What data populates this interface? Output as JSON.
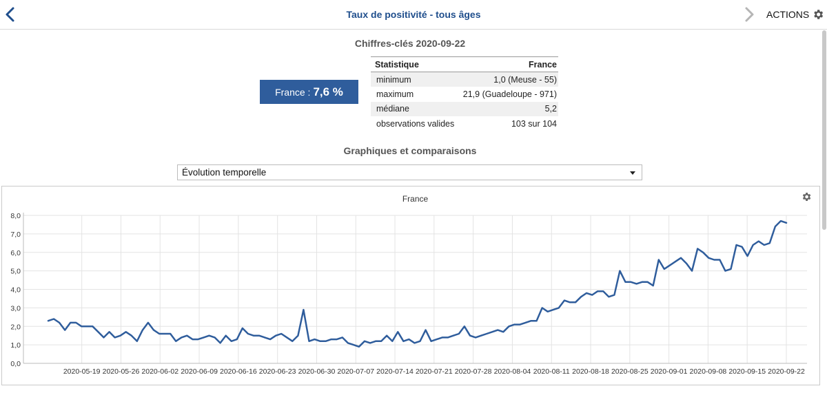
{
  "header": {
    "title": "Taux de positivité - tous âges",
    "actions_label": "ACTIONS"
  },
  "key_figures": {
    "title": "Chiffres-clés 2020-09-22",
    "france_label": "France : ",
    "france_value": "7,6 %",
    "table": {
      "headers": [
        "Statistique",
        "France"
      ],
      "rows": [
        [
          "minimum",
          "1,0 (Meuse - 55)"
        ],
        [
          "maximum",
          "21,9 (Guadeloupe - 971)"
        ],
        [
          "médiane",
          "5,2"
        ],
        [
          "observations valides",
          "103 sur 104"
        ]
      ]
    }
  },
  "graphs": {
    "title": "Graphiques et comparaisons",
    "select_value": "Évolution temporelle"
  },
  "chart_data": {
    "type": "line",
    "title": "France",
    "xlabel": "",
    "ylabel": "",
    "ylim": [
      0,
      8
    ],
    "y_ticks": [
      "0,0",
      "1,0",
      "2,0",
      "3,0",
      "4,0",
      "5,0",
      "6,0",
      "7,0",
      "8,0"
    ],
    "x_tick_labels": [
      "2020-05-19",
      "2020-05-26",
      "2020-06-02",
      "2020-06-09",
      "2020-06-16",
      "2020-06-23",
      "2020-06-30",
      "2020-07-07",
      "2020-07-14",
      "2020-07-21",
      "2020-07-28",
      "2020-08-04",
      "2020-08-11",
      "2020-08-18",
      "2020-08-25",
      "2020-09-01",
      "2020-09-08",
      "2020-09-15",
      "2020-09-22"
    ],
    "x_start": "2020-05-13",
    "x_end": "2020-09-22",
    "grid": true,
    "series": [
      {
        "color": "#2f5d9c",
        "values": [
          2.3,
          2.4,
          2.2,
          1.8,
          2.2,
          2.2,
          2.0,
          2.0,
          2.0,
          1.7,
          1.4,
          1.7,
          1.4,
          1.5,
          1.7,
          1.5,
          1.2,
          1.8,
          2.2,
          1.8,
          1.6,
          1.6,
          1.6,
          1.2,
          1.4,
          1.5,
          1.3,
          1.3,
          1.4,
          1.5,
          1.4,
          1.1,
          1.5,
          1.2,
          1.3,
          1.9,
          1.6,
          1.5,
          1.5,
          1.4,
          1.3,
          1.5,
          1.6,
          1.4,
          1.2,
          1.5,
          2.9,
          1.2,
          1.3,
          1.2,
          1.2,
          1.3,
          1.3,
          1.4,
          1.1,
          1.0,
          0.9,
          1.2,
          1.1,
          1.2,
          1.2,
          1.5,
          1.2,
          1.7,
          1.2,
          1.3,
          1.1,
          1.2,
          1.8,
          1.2,
          1.3,
          1.4,
          1.4,
          1.5,
          1.6,
          2.0,
          1.5,
          1.4,
          1.5,
          1.6,
          1.7,
          1.8,
          1.7,
          2.0,
          2.1,
          2.1,
          2.2,
          2.3,
          2.3,
          3.0,
          2.8,
          2.9,
          3.0,
          3.4,
          3.3,
          3.3,
          3.6,
          3.8,
          3.7,
          3.9,
          3.9,
          3.6,
          3.7,
          5.0,
          4.4,
          4.4,
          4.3,
          4.4,
          4.4,
          4.2,
          5.6,
          5.1,
          5.3,
          5.5,
          5.7,
          5.4,
          5.0,
          6.2,
          6.0,
          5.7,
          5.6,
          5.6,
          5.0,
          5.1,
          6.4,
          6.3,
          5.8,
          6.4,
          6.6,
          6.4,
          6.5,
          7.4,
          7.7,
          7.6
        ]
      }
    ]
  }
}
